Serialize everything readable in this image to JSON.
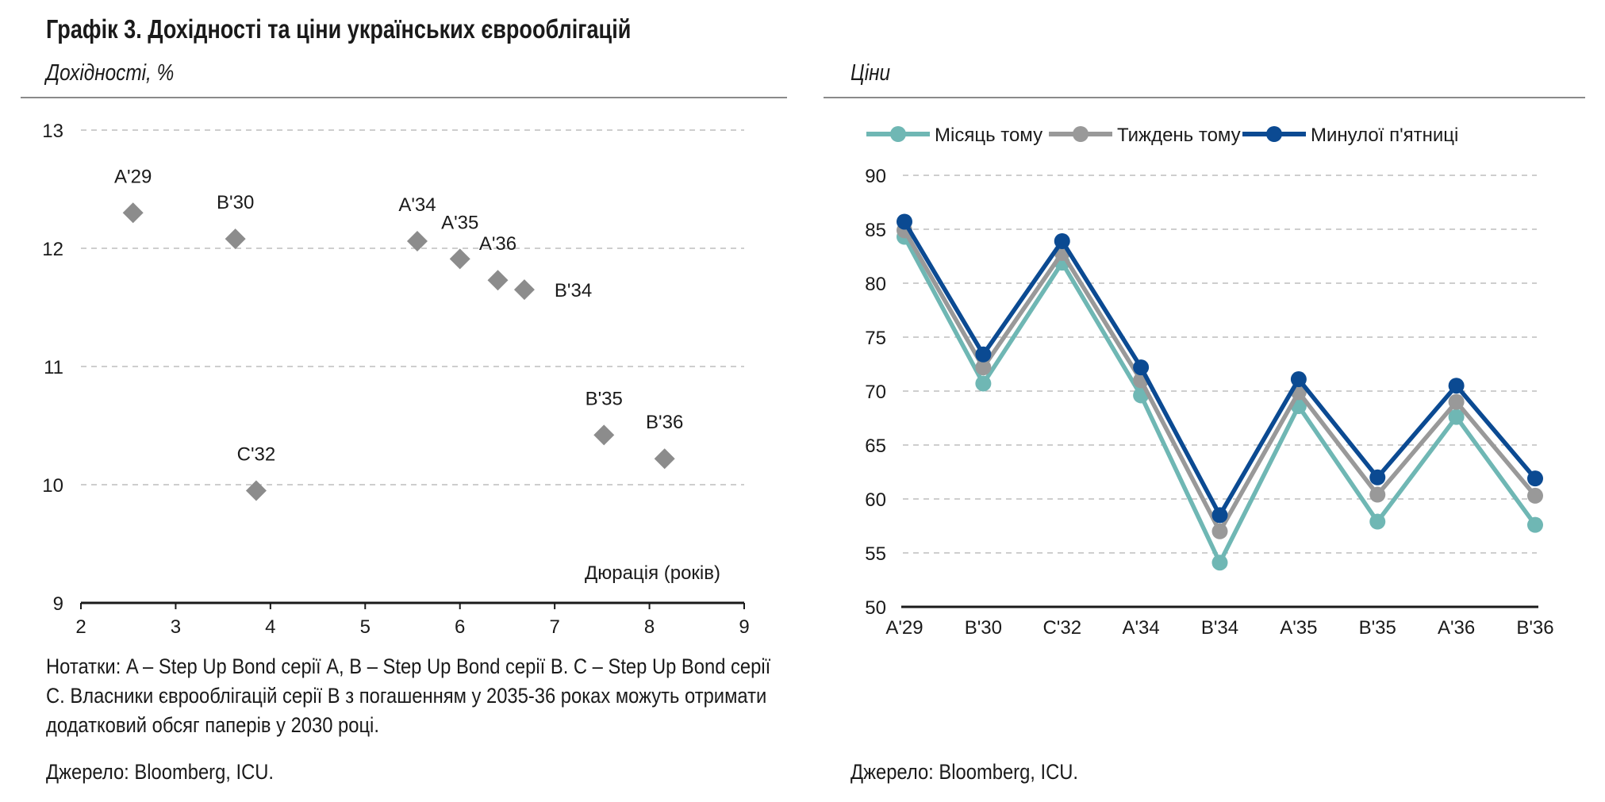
{
  "title": "Графік 3. Дохідності та ціни українських єврооблігацій",
  "left_panel": {
    "subtitle": "Дохідності, %",
    "xlabel": "Дюрація (років)",
    "source": "Джерело: Bloomberg, ICU."
  },
  "right_panel": {
    "subtitle": "Ціни",
    "source": "Джерело: Bloomberg, ICU."
  },
  "notes": "Нотатки: A – Step Up Bond серії A, B – Step Up Bond серії B. C – Step Up Bond серії C. Власники єврооблігацій серії B з погашенням у 2035-36 роках можуть отримати додатковий обсяг паперів у 2030 році.",
  "colors": {
    "scatter_marker": "#8c8c8c",
    "month_ago": "#6fb7b4",
    "week_ago": "#999999",
    "last_friday": "#0b4a92",
    "grid": "#bdbdbd",
    "axis": "#1a1a1a"
  },
  "chart_data": [
    {
      "type": "scatter",
      "title": "",
      "xlabel": "Дюрація (років)",
      "ylabel": "Дохідності, %",
      "xlim": [
        2,
        9
      ],
      "ylim": [
        9,
        13
      ],
      "xticks": [
        2,
        3,
        4,
        5,
        6,
        7,
        8,
        9
      ],
      "yticks": [
        9,
        10,
        11,
        12,
        13
      ],
      "grid": "horizontal dashed",
      "points": [
        {
          "label": "A'29",
          "x": 2.55,
          "y": 12.3,
          "label_pos": "above"
        },
        {
          "label": "B'30",
          "x": 3.63,
          "y": 12.08,
          "label_pos": "above"
        },
        {
          "label": "C'32",
          "x": 3.85,
          "y": 9.95,
          "label_pos": "above"
        },
        {
          "label": "A'34",
          "x": 5.55,
          "y": 12.06,
          "label_pos": "above"
        },
        {
          "label": "A'35",
          "x": 6.0,
          "y": 11.91,
          "label_pos": "above"
        },
        {
          "label": "A'36",
          "x": 6.4,
          "y": 11.73,
          "label_pos": "above"
        },
        {
          "label": "B'34",
          "x": 6.68,
          "y": 11.65,
          "label_pos": "right"
        },
        {
          "label": "B'35",
          "x": 7.52,
          "y": 10.42,
          "label_pos": "above"
        },
        {
          "label": "B'36",
          "x": 8.16,
          "y": 10.22,
          "label_pos": "above"
        }
      ]
    },
    {
      "type": "line",
      "title": "",
      "ylabel": "Ціни",
      "ylim": [
        50,
        90
      ],
      "yticks": [
        50,
        55,
        60,
        65,
        70,
        75,
        80,
        85,
        90
      ],
      "grid": "horizontal dashed",
      "legend_position": "top",
      "categories": [
        "A'29",
        "B'30",
        "C'32",
        "A'34",
        "B'34",
        "A'35",
        "B'35",
        "A'36",
        "B'36"
      ],
      "series": [
        {
          "name": "Місяць тому",
          "color": "#6fb7b4",
          "values": [
            84.3,
            70.7,
            81.9,
            69.6,
            54.1,
            68.6,
            57.9,
            67.6,
            57.6
          ]
        },
        {
          "name": "Тиждень тому",
          "color": "#999999",
          "values": [
            84.9,
            72.2,
            82.8,
            71.0,
            57.0,
            69.9,
            60.4,
            69.0,
            60.3
          ]
        },
        {
          "name": "Минулої п'ятниці",
          "color": "#0b4a92",
          "values": [
            85.7,
            73.4,
            83.9,
            72.2,
            58.5,
            71.1,
            62.0,
            70.5,
            61.9
          ]
        }
      ]
    }
  ]
}
